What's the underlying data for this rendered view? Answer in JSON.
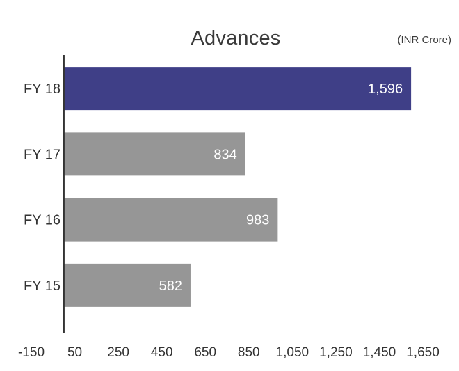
{
  "chart_data": {
    "type": "bar",
    "orientation": "horizontal",
    "title": "Advances",
    "unit_label": "(INR Crore)",
    "categories": [
      "FY 18",
      "FY 17",
      "FY 16",
      "FY 15"
    ],
    "values": [
      1596,
      834,
      983,
      582
    ],
    "value_labels": [
      "1,596",
      "834",
      "983",
      "582"
    ],
    "bar_colors": [
      "#3f3f87",
      "#969696",
      "#969696",
      "#969696"
    ],
    "x_ticks": [
      -150,
      50,
      250,
      450,
      650,
      850,
      1050,
      1250,
      1450,
      1650
    ],
    "x_tick_labels": [
      "-150",
      "50",
      "250",
      "450",
      "650",
      "850",
      "1,050",
      "1,250",
      "1,450",
      "1,650"
    ],
    "xlim": [
      -150,
      1650
    ],
    "baseline": 0,
    "grid": false,
    "legend": "none"
  }
}
